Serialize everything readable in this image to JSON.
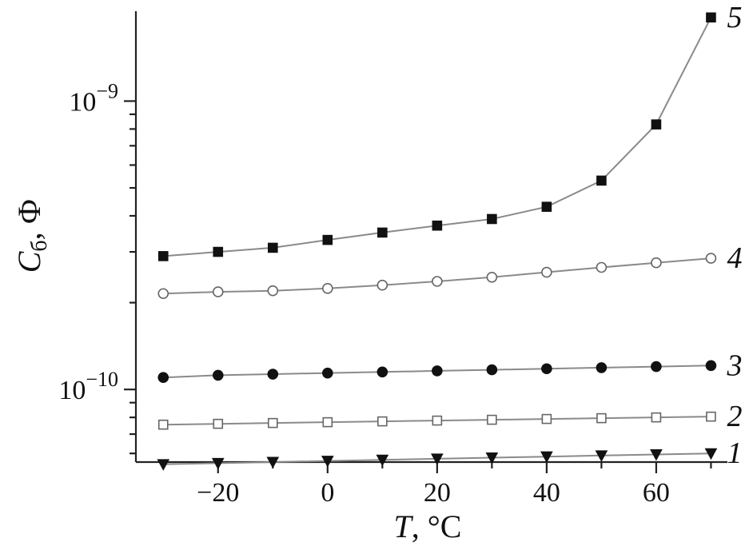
{
  "chart_data": {
    "type": "line",
    "x_label": {
      "symbol": "T",
      "rest": ", °C"
    },
    "y_label": {
      "symbol": "C",
      "subscript": "б",
      "rest": ", Ф"
    },
    "x": [
      -30,
      -20,
      -10,
      0,
      10,
      20,
      30,
      40,
      50,
      60,
      70
    ],
    "xlim": [
      -35,
      73
    ],
    "ylim": [
      5.6e-11,
      2.05e-09
    ],
    "y_scale": "log",
    "x_ticks": [
      {
        "value": -20,
        "label": "−20"
      },
      {
        "value": 0,
        "label": "0"
      },
      {
        "value": 20,
        "label": "20"
      },
      {
        "value": 40,
        "label": "40"
      },
      {
        "value": 60,
        "label": "60"
      }
    ],
    "x_minor_ticks": [
      -30,
      -10,
      10,
      30,
      50,
      70
    ],
    "y_major_ticks": [
      {
        "value": 1e-10,
        "base": "10",
        "exp": "−10"
      },
      {
        "value": 1e-09,
        "base": "10",
        "exp": "−9"
      }
    ],
    "y_minor_ticks": [
      6e-11,
      7e-11,
      8e-11,
      9e-11,
      2e-10,
      3e-10,
      4e-10,
      5e-10,
      6e-10,
      7e-10,
      8e-10,
      9e-10
    ],
    "series": [
      {
        "name": "1",
        "marker": "triangle-down",
        "fill": "#111111",
        "values": [
          5.5e-11,
          5.55e-11,
          5.6e-11,
          5.65e-11,
          5.7e-11,
          5.75e-11,
          5.8e-11,
          5.85e-11,
          5.9e-11,
          5.95e-11,
          6e-11
        ]
      },
      {
        "name": "2",
        "marker": "square",
        "fill": "#ffffff",
        "values": [
          7.55e-11,
          7.6e-11,
          7.65e-11,
          7.7e-11,
          7.75e-11,
          7.8e-11,
          7.85e-11,
          7.9e-11,
          7.95e-11,
          8e-11,
          8.05e-11
        ]
      },
      {
        "name": "3",
        "marker": "circle",
        "fill": "#111111",
        "values": [
          1.1e-10,
          1.12e-10,
          1.13e-10,
          1.14e-10,
          1.15e-10,
          1.16e-10,
          1.17e-10,
          1.18e-10,
          1.19e-10,
          1.2e-10,
          1.21e-10
        ]
      },
      {
        "name": "4",
        "marker": "circle",
        "fill": "#ffffff",
        "values": [
          2.15e-10,
          2.18e-10,
          2.2e-10,
          2.24e-10,
          2.3e-10,
          2.37e-10,
          2.45e-10,
          2.55e-10,
          2.65e-10,
          2.75e-10,
          2.85e-10
        ]
      },
      {
        "name": "5",
        "marker": "square",
        "fill": "#111111",
        "values": [
          2.9e-10,
          3e-10,
          3.1e-10,
          3.3e-10,
          3.5e-10,
          3.7e-10,
          3.9e-10,
          4.3e-10,
          5.3e-10,
          8.3e-10,
          1.95e-09
        ]
      }
    ]
  }
}
